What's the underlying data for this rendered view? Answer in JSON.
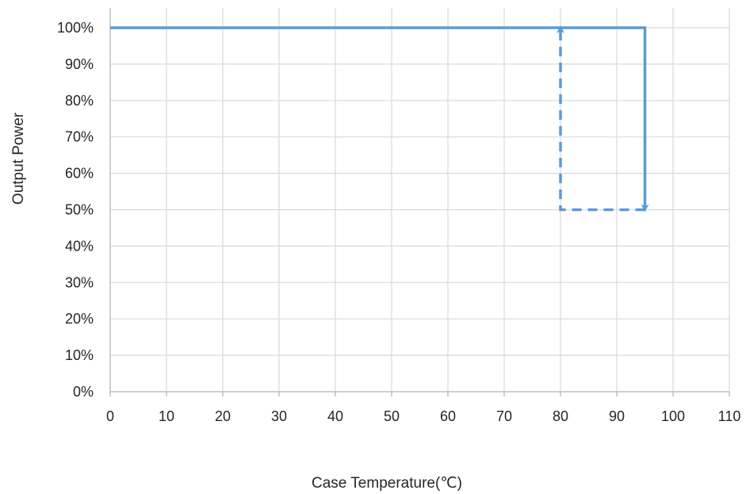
{
  "chart_data": {
    "type": "line",
    "title": "",
    "xlabel": "Case Temperature(℃)",
    "ylabel": "Output Power",
    "xlim": [
      0,
      110
    ],
    "ylim": [
      0,
      100
    ],
    "x_ticks": [
      0,
      10,
      20,
      30,
      40,
      50,
      60,
      70,
      80,
      90,
      100,
      110
    ],
    "y_ticks": [
      0,
      10,
      20,
      30,
      40,
      50,
      60,
      70,
      80,
      90,
      100
    ],
    "x_tick_labels": [
      "0",
      "10",
      "20",
      "30",
      "40",
      "50",
      "60",
      "70",
      "80",
      "90",
      "100",
      "110"
    ],
    "y_tick_labels": [
      "0%",
      "10%",
      "20%",
      "30%",
      "40%",
      "50%",
      "60%",
      "70%",
      "80%",
      "90%",
      "100%"
    ],
    "grid": true,
    "series": [
      {
        "style": "solid",
        "arrow_at_end": true,
        "points": [
          [
            0,
            100
          ],
          [
            95,
            100
          ],
          [
            95,
            50
          ]
        ]
      },
      {
        "style": "dashed",
        "arrow_at_end": true,
        "points": [
          [
            95,
            50
          ],
          [
            80,
            50
          ],
          [
            80,
            100
          ]
        ]
      }
    ],
    "colors": {
      "line": "#5b9bd5",
      "grid": "#d9d9d9",
      "axis": "#bfbfbf",
      "text": "#262626"
    }
  }
}
